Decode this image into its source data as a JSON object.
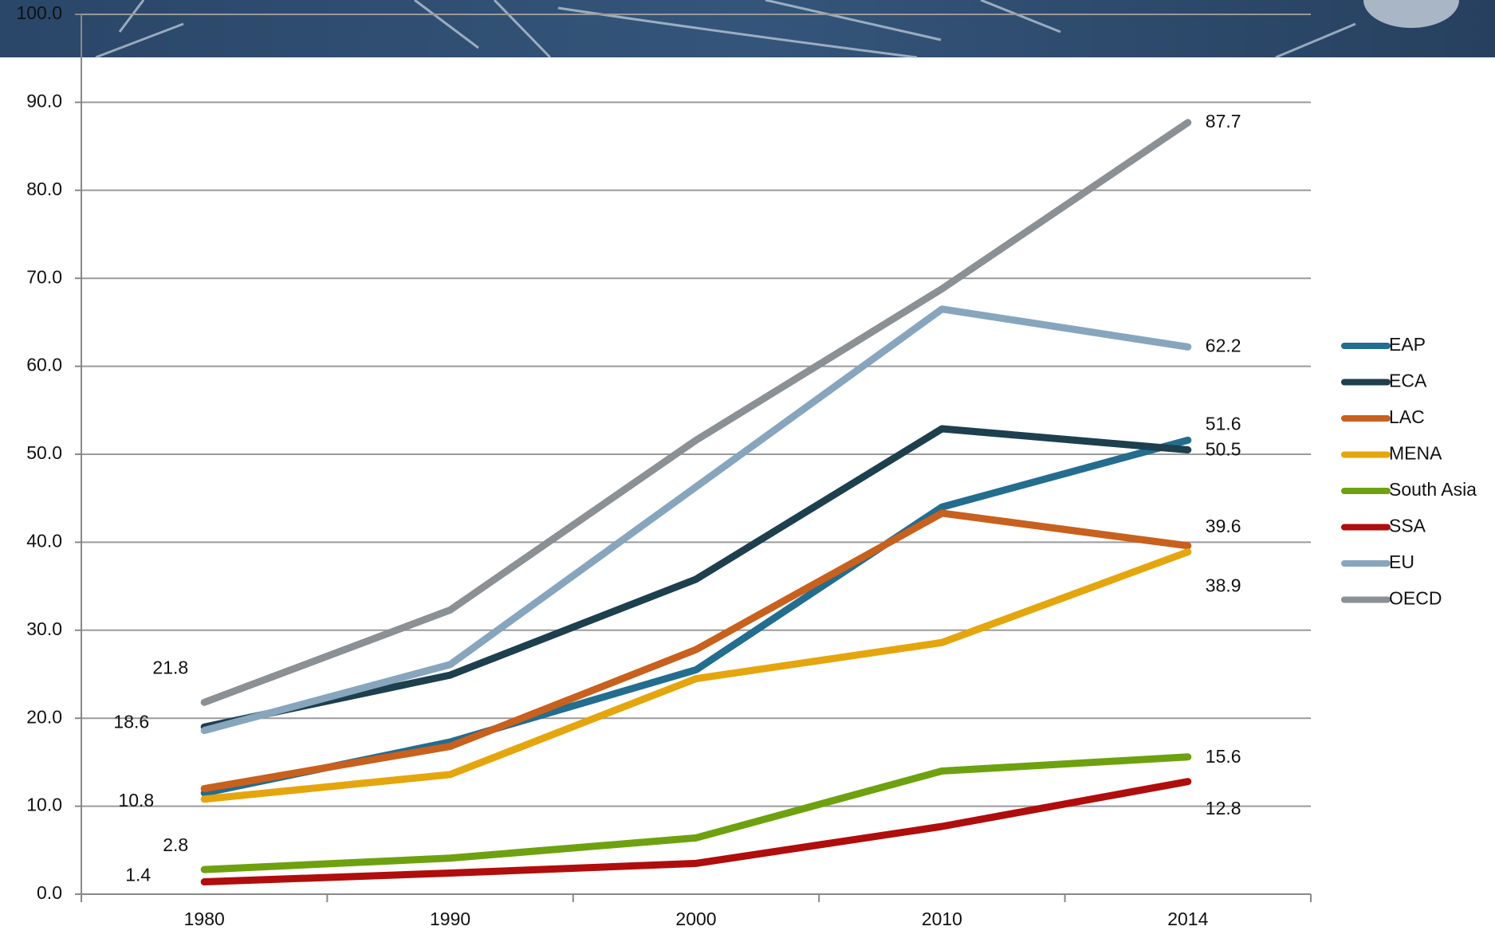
{
  "chart_data": {
    "type": "line",
    "categories": [
      "1980",
      "1990",
      "2000",
      "2010",
      "2014"
    ],
    "series": [
      {
        "name": "EAP",
        "color": "#236d8f",
        "values": [
          11.5,
          17.3,
          25.5,
          44.0,
          51.6
        ],
        "labels_at": [
          4
        ]
      },
      {
        "name": "ECA",
        "color": "#1d3f4e",
        "values": [
          19.0,
          24.9,
          35.8,
          52.9,
          50.5
        ],
        "labels_at": [
          4
        ]
      },
      {
        "name": "LAC",
        "color": "#c8601e",
        "values": [
          12.0,
          16.8,
          27.8,
          43.3,
          39.6
        ],
        "labels_at": [
          4
        ]
      },
      {
        "name": "MENA",
        "color": "#e5a50d",
        "values": [
          10.8,
          13.6,
          24.5,
          28.6,
          38.9
        ],
        "labels_at": [
          0,
          4
        ]
      },
      {
        "name": "South Asia",
        "color": "#6ea10f",
        "values": [
          2.8,
          4.1,
          6.4,
          14.0,
          15.6
        ],
        "labels_at": [
          0,
          4
        ]
      },
      {
        "name": "SSA",
        "color": "#b00d0d",
        "values": [
          1.4,
          2.4,
          3.5,
          7.7,
          12.8
        ],
        "labels_at": [
          0,
          4
        ]
      },
      {
        "name": "EU",
        "color": "#87a6bd",
        "values": [
          18.6,
          26.1,
          46.3,
          66.5,
          62.2
        ],
        "labels_at": [
          0,
          4
        ]
      },
      {
        "name": "OECD",
        "color": "#8a9094",
        "values": [
          21.8,
          32.3,
          51.6,
          68.8,
          87.7
        ],
        "labels_at": [
          0,
          4
        ]
      }
    ],
    "ylim": [
      0,
      100
    ],
    "yticks": [
      {
        "value": 0,
        "label": "0.0"
      },
      {
        "value": 10,
        "label": "10.0"
      },
      {
        "value": 20,
        "label": "20.0"
      },
      {
        "value": 30,
        "label": "30.0"
      },
      {
        "value": 40,
        "label": "40.0"
      },
      {
        "value": 50,
        "label": "50.0"
      },
      {
        "value": 60,
        "label": "60.0"
      },
      {
        "value": 70,
        "label": "70.0"
      },
      {
        "value": 80,
        "label": "80.0"
      },
      {
        "value": 90,
        "label": "90.0"
      },
      {
        "value": 100,
        "label": "100.0"
      }
    ],
    "grid": true,
    "legend": "right"
  }
}
